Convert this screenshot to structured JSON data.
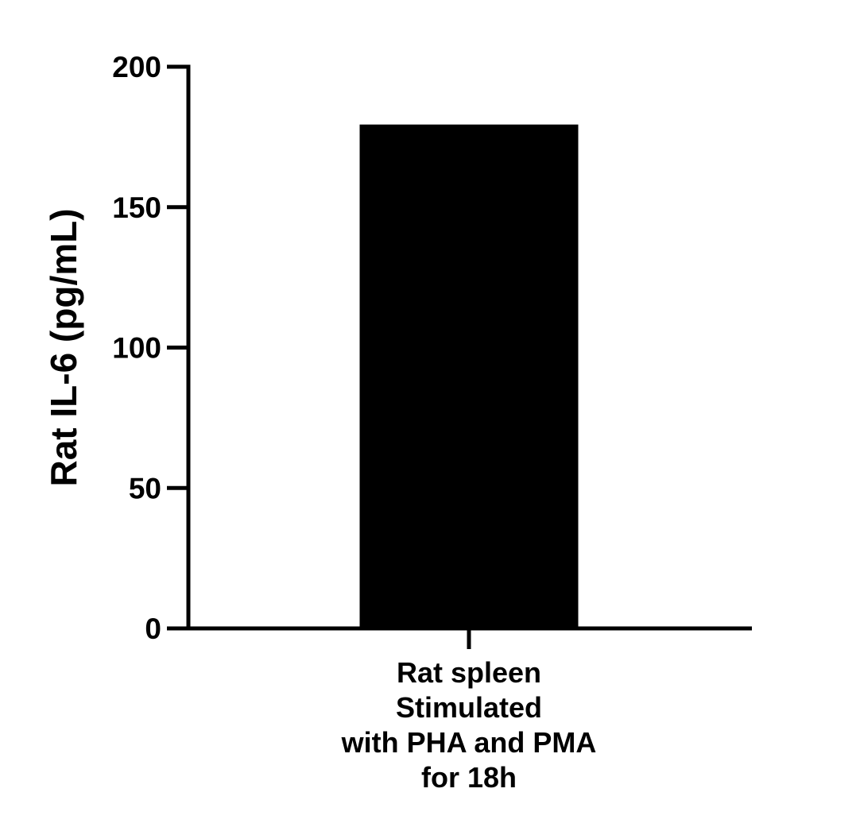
{
  "chart_data": {
    "type": "bar",
    "categories": [
      "Rat spleen Stimulated with PHA and PMA for 18h"
    ],
    "category_label_lines": [
      [
        "Rat spleen",
        "Stimulated",
        "with PHA and PMA",
        "for 18h"
      ]
    ],
    "values": [
      179
    ],
    "ylabel": "Rat IL-6 (pg/mL)",
    "xlabel": "",
    "ylim": [
      0,
      200
    ],
    "yticks": [
      0,
      50,
      100,
      150,
      200
    ],
    "grid": false,
    "bar_color": "#000000"
  }
}
